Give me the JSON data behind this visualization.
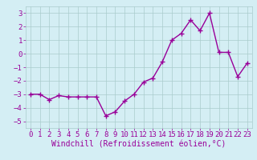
{
  "x": [
    0,
    1,
    2,
    3,
    4,
    5,
    6,
    7,
    8,
    9,
    10,
    11,
    12,
    13,
    14,
    15,
    16,
    17,
    18,
    19,
    20,
    21,
    22,
    23
  ],
  "y": [
    -3.0,
    -3.0,
    -3.4,
    -3.1,
    -3.2,
    -3.2,
    -3.2,
    -3.2,
    -4.6,
    -4.3,
    -3.5,
    -3.0,
    -2.1,
    -1.8,
    -0.6,
    1.0,
    1.5,
    2.5,
    1.7,
    3.0,
    0.1,
    0.1,
    -1.7,
    -0.7
  ],
  "line_color": "#990099",
  "marker": "+",
  "marker_size": 5,
  "line_width": 1.0,
  "background_color": "#d4eef4",
  "grid_color": "#aacccc",
  "xlabel": "Windchill (Refroidissement éolien,°C)",
  "xlabel_fontsize": 7,
  "tick_fontsize": 6.5,
  "ylim": [
    -5.5,
    3.5
  ],
  "xlim": [
    -0.5,
    23.5
  ],
  "yticks": [
    -5,
    -4,
    -3,
    -2,
    -1,
    0,
    1,
    2,
    3
  ],
  "xticks": [
    0,
    1,
    2,
    3,
    4,
    5,
    6,
    7,
    8,
    9,
    10,
    11,
    12,
    13,
    14,
    15,
    16,
    17,
    18,
    19,
    20,
    21,
    22,
    23
  ]
}
